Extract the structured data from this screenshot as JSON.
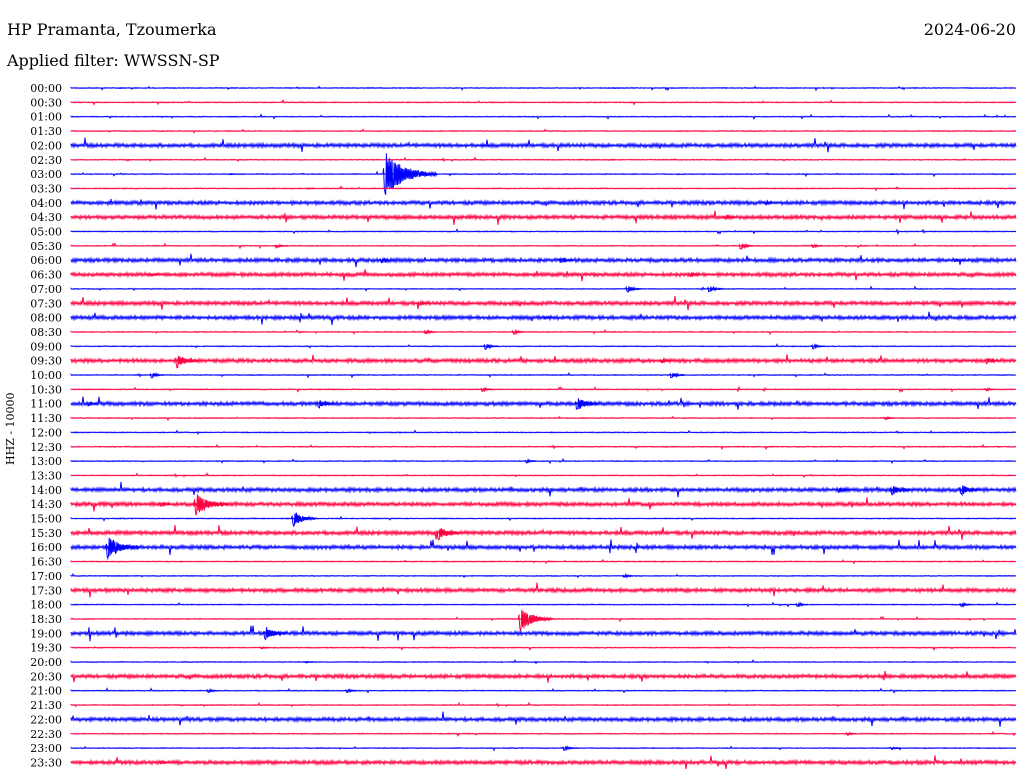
{
  "header": {
    "station": "HP Pramanta, Tzoumerka",
    "date": "2024-06-20",
    "filter": "Applied filter: WWSSN-SP"
  },
  "colors": {
    "even_trace": "#0000ff",
    "odd_trace": "#ff0040",
    "background": "#ffffff"
  },
  "chart_data": {
    "type": "line",
    "title": "HP Pramanta, Tzoumerka",
    "ylabel": "HHZ - 10000",
    "trace_interval_minutes": 30,
    "trace_colors": [
      "#0000ff",
      "#ff0040"
    ],
    "rows": [
      "00:00",
      "00:30",
      "01:00",
      "01:30",
      "02:00",
      "02:30",
      "03:00",
      "03:30",
      "04:00",
      "04:30",
      "05:00",
      "05:30",
      "06:00",
      "06:30",
      "07:00",
      "07:30",
      "08:00",
      "08:30",
      "09:00",
      "09:30",
      "10:00",
      "10:30",
      "11:00",
      "11:30",
      "12:00",
      "12:30",
      "13:00",
      "13:30",
      "14:00",
      "14:30",
      "15:00",
      "15:30",
      "16:00",
      "16:30",
      "17:00",
      "17:30",
      "18:00",
      "18:30",
      "19:00",
      "19:30",
      "20:00",
      "20:30",
      "21:00",
      "21:30",
      "22:00",
      "22:30",
      "23:00",
      "23:30"
    ],
    "events": [
      {
        "row": 0,
        "minute": 1.5,
        "amplitude": 0.12
      },
      {
        "row": 0,
        "minute": 17.2,
        "amplitude": 0.08
      },
      {
        "row": 2,
        "minute": 5.0,
        "amplitude": 0.08
      },
      {
        "row": 3,
        "minute": 27.5,
        "amplitude": 0.06
      },
      {
        "row": 4,
        "minute": 13.0,
        "amplitude": 0.1
      },
      {
        "row": 5,
        "minute": 1.7,
        "amplitude": 0.1
      },
      {
        "row": 5,
        "minute": 17.0,
        "amplitude": 0.1
      },
      {
        "row": 6,
        "minute": 9.9,
        "amplitude": 2.7
      },
      {
        "row": 6,
        "minute": 5.0,
        "amplitude": 0.12
      },
      {
        "row": 6,
        "minute": 26.0,
        "amplitude": 0.1
      },
      {
        "row": 7,
        "minute": 7.5,
        "amplitude": 0.12
      },
      {
        "row": 7,
        "minute": 23.0,
        "amplitude": 0.12
      },
      {
        "row": 8,
        "minute": 22.0,
        "amplitude": 0.35
      },
      {
        "row": 9,
        "minute": 20.7,
        "amplitude": 0.4
      },
      {
        "row": 11,
        "minute": 6.5,
        "amplitude": 0.3
      },
      {
        "row": 11,
        "minute": 21.2,
        "amplitude": 0.55
      },
      {
        "row": 11,
        "minute": 23.5,
        "amplitude": 0.35
      },
      {
        "row": 12,
        "minute": 9.8,
        "amplitude": 0.45
      },
      {
        "row": 12,
        "minute": 15.5,
        "amplitude": 0.45
      },
      {
        "row": 12,
        "minute": 28.0,
        "amplitude": 0.3
      },
      {
        "row": 13,
        "minute": 2.5,
        "amplitude": 0.3
      },
      {
        "row": 13,
        "minute": 19.6,
        "amplitude": 0.4
      },
      {
        "row": 14,
        "minute": 17.6,
        "amplitude": 0.6
      },
      {
        "row": 14,
        "minute": 20.2,
        "amplitude": 0.55
      },
      {
        "row": 15,
        "minute": 11.0,
        "amplitude": 0.35
      },
      {
        "row": 16,
        "minute": 15.0,
        "amplitude": 0.3
      },
      {
        "row": 17,
        "minute": 11.2,
        "amplitude": 0.4
      },
      {
        "row": 17,
        "minute": 14.0,
        "amplitude": 0.4
      },
      {
        "row": 18,
        "minute": 13.1,
        "amplitude": 0.5
      },
      {
        "row": 18,
        "minute": 23.5,
        "amplitude": 0.45
      },
      {
        "row": 19,
        "minute": 3.3,
        "amplitude": 1.0
      },
      {
        "row": 19,
        "minute": 18.7,
        "amplitude": 0.4
      },
      {
        "row": 19,
        "minute": 29.0,
        "amplitude": 0.5
      },
      {
        "row": 20,
        "minute": 2.5,
        "amplitude": 0.5
      },
      {
        "row": 20,
        "minute": 19.0,
        "amplitude": 0.55
      },
      {
        "row": 21,
        "minute": 13.0,
        "amplitude": 0.4
      },
      {
        "row": 21,
        "minute": 29.0,
        "amplitude": 0.3
      },
      {
        "row": 22,
        "minute": 0.5,
        "amplitude": 0.35
      },
      {
        "row": 22,
        "minute": 7.8,
        "amplitude": 0.7
      },
      {
        "row": 22,
        "minute": 16.0,
        "amplitude": 1.0
      },
      {
        "row": 23,
        "minute": 25.8,
        "amplitude": 0.3
      },
      {
        "row": 26,
        "minute": 14.4,
        "amplitude": 0.35
      },
      {
        "row": 28,
        "minute": 24.3,
        "amplitude": 0.5
      },
      {
        "row": 28,
        "minute": 26.0,
        "amplitude": 0.85
      },
      {
        "row": 28,
        "minute": 28.2,
        "amplitude": 0.85
      },
      {
        "row": 29,
        "minute": 2.8,
        "amplitude": 0.4
      },
      {
        "row": 29,
        "minute": 3.9,
        "amplitude": 1.6
      },
      {
        "row": 30,
        "minute": 7.0,
        "amplitude": 1.1
      },
      {
        "row": 31,
        "minute": 11.6,
        "amplitude": 1.0
      },
      {
        "row": 32,
        "minute": 1.1,
        "amplitude": 1.6
      },
      {
        "row": 34,
        "minute": 17.5,
        "amplitude": 0.35
      },
      {
        "row": 36,
        "minute": 23.0,
        "amplitude": 0.4
      },
      {
        "row": 36,
        "minute": 28.2,
        "amplitude": 0.4
      },
      {
        "row": 37,
        "minute": 14.2,
        "amplitude": 1.6
      },
      {
        "row": 38,
        "minute": 6.1,
        "amplitude": 1.0
      },
      {
        "row": 39,
        "minute": 6.0,
        "amplitude": 0.25
      },
      {
        "row": 40,
        "minute": 7.4,
        "amplitude": 0.2
      },
      {
        "row": 42,
        "minute": 4.3,
        "amplitude": 0.35
      },
      {
        "row": 42,
        "minute": 8.7,
        "amplitude": 0.35
      },
      {
        "row": 45,
        "minute": 24.6,
        "amplitude": 0.3
      },
      {
        "row": 46,
        "minute": 15.6,
        "amplitude": 0.45
      },
      {
        "row": 46,
        "minute": 26.0,
        "amplitude": 0.3
      },
      {
        "row": 47,
        "minute": 2.8,
        "amplitude": 0.3
      }
    ],
    "noisy_rows": [
      4,
      8,
      9,
      12,
      13,
      15,
      16,
      19,
      22,
      28,
      29,
      31,
      32,
      35,
      38,
      41,
      44,
      47
    ]
  }
}
